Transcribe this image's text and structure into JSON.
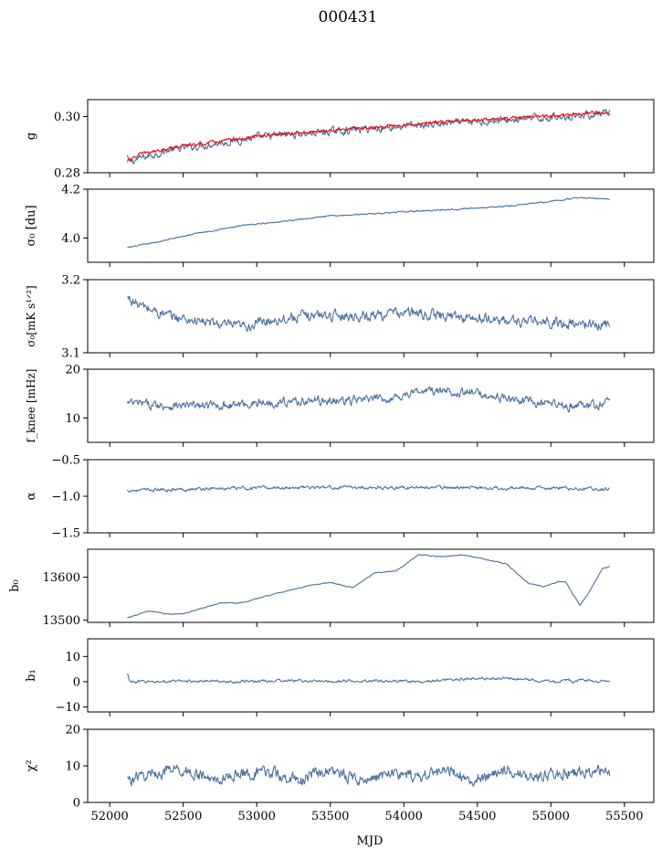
{
  "colors": {
    "series": "#4c72a0",
    "fit": "#ff0000",
    "axis": "#000000"
  },
  "chart_data": {
    "type": "line",
    "title": "000431",
    "xlabel": "MJD",
    "xlim": [
      51850,
      55700
    ],
    "xticks": [
      52000,
      52500,
      53000,
      53500,
      54000,
      54500,
      55000,
      55500
    ],
    "xtick_labels": [
      "52000",
      "52500",
      "53000",
      "53500",
      "54000",
      "54500",
      "55000",
      "55500"
    ],
    "data_xrange": [
      52120,
      55400
    ],
    "panels": [
      {
        "id": "g",
        "ylabel": "g",
        "ylim": [
          0.28,
          0.306
        ],
        "yticks": [
          0.28,
          0.3
        ],
        "ytick_labels": [
          "0.28",
          "0.30"
        ],
        "series": [
          {
            "name": "g",
            "color": "#4c72a0",
            "x": [
              52120,
              52200,
              52400,
              52600,
              52800,
              53000,
              53200,
              53400,
              53600,
              53800,
              54000,
              54200,
              54400,
              54600,
              54800,
              55000,
              55200,
              55400
            ],
            "y": [
              0.2835,
              0.285,
              0.288,
              0.2895,
              0.291,
              0.2925,
              0.2935,
              0.2942,
              0.295,
              0.2958,
              0.2965,
              0.2972,
              0.2978,
              0.2985,
              0.299,
              0.2998,
              0.3005,
              0.301
            ],
            "noise": 0.0015
          },
          {
            "name": "g-fit",
            "color": "#ff0000",
            "x": [
              52120,
              52140,
              52200,
              52400,
              52600,
              52800,
              53000,
              53200,
              53400,
              53600,
              53800,
              54000,
              54200,
              54400,
              54600,
              54800,
              55000,
              55200,
              55300,
              55400
            ],
            "y": [
              0.286,
              0.2845,
              0.2865,
              0.2888,
              0.2902,
              0.2915,
              0.2928,
              0.2938,
              0.2946,
              0.2955,
              0.2962,
              0.297,
              0.2978,
              0.2985,
              0.299,
              0.2996,
              0.3003,
              0.3008,
              0.3013,
              0.3008
            ],
            "noise": 0.0006
          }
        ]
      },
      {
        "id": "sigma0",
        "ylabel": "σ₀ [du]",
        "ylim": [
          3.9,
          4.2
        ],
        "yticks": [
          4.0,
          4.2
        ],
        "ytick_labels": [
          "4.0",
          "4.2"
        ],
        "series": [
          {
            "name": "sigma0",
            "color": "#4c72a0",
            "x": [
              52120,
              52300,
              52600,
              52900,
              53200,
              53500,
              53800,
              54100,
              54400,
              54700,
              55000,
              55200,
              55400
            ],
            "y": [
              3.96,
              3.98,
              4.02,
              4.05,
              4.07,
              4.09,
              4.1,
              4.11,
              4.12,
              4.13,
              4.15,
              4.165,
              4.16
            ],
            "noise": 0.003
          }
        ]
      },
      {
        "id": "sigma0k",
        "ylabel": "σ₀[mK s¹ᐟ²]",
        "ylim": [
          3.1,
          3.2
        ],
        "yticks": [
          3.1,
          3.2
        ],
        "ytick_labels": [
          "3.1",
          "3.2"
        ],
        "series": [
          {
            "name": "sigma0-mK",
            "color": "#4c72a0",
            "x": [
              52120,
              52200,
              52400,
              52700,
              52900,
              53100,
              53400,
              53700,
              54000,
              54300,
              54600,
              54900,
              55100,
              55400
            ],
            "y": [
              3.175,
              3.165,
              3.15,
              3.14,
              3.135,
              3.145,
              3.152,
              3.15,
              3.155,
              3.15,
              3.145,
              3.142,
              3.14,
              3.138
            ],
            "noise": 0.008
          }
        ]
      },
      {
        "id": "fknee",
        "ylabel": "f_knee [mHz]",
        "ylim": [
          5,
          20
        ],
        "yticks": [
          10,
          20
        ],
        "ytick_labels": [
          "10",
          "20"
        ],
        "series": [
          {
            "name": "fknee",
            "color": "#4c72a0",
            "x": [
              52120,
              52400,
              52700,
              53000,
              53300,
              53600,
              53900,
              54100,
              54300,
              54500,
              54700,
              54900,
              55100,
              55300,
              55400
            ],
            "y": [
              13,
              12.5,
              12.5,
              13,
              13.5,
              13.5,
              14,
              15.5,
              15.5,
              15,
              14,
              13,
              12.5,
              12.5,
              13.5
            ],
            "noise": 1.0
          }
        ]
      },
      {
        "id": "alpha",
        "ylabel": "α",
        "ylim": [
          -1.5,
          -0.5
        ],
        "yticks": [
          -1.5,
          -1.0,
          -0.5
        ],
        "ytick_labels": [
          "−1.5",
          "−1.0",
          "−0.5"
        ],
        "series": [
          {
            "name": "alpha",
            "color": "#4c72a0",
            "x": [
              52120,
              52600,
              53200,
              53800,
              54400,
              55000,
              55400
            ],
            "y": [
              -0.92,
              -0.9,
              -0.88,
              -0.88,
              -0.88,
              -0.89,
              -0.9
            ],
            "noise": 0.025
          }
        ]
      },
      {
        "id": "b0",
        "ylabel": "b₀",
        "ylim": [
          13495,
          13665
        ],
        "yticks": [
          13500,
          13600
        ],
        "ytick_labels": [
          "13500",
          "13600"
        ],
        "series": [
          {
            "name": "b0",
            "color": "#4c72a0",
            "x": [
              52120,
              52250,
              52300,
              52400,
              52500,
              52600,
              52750,
              52900,
              53050,
              53200,
              53350,
              53500,
              53650,
              53800,
              53950,
              54100,
              54250,
              54400,
              54550,
              54700,
              54850,
              54950,
              55050,
              55100,
              55150,
              55200,
              55250,
              55300,
              55350,
              55400
            ],
            "y": [
              13505,
              13520,
              13520,
              13514,
              13515,
              13525,
              13540,
              13540,
              13555,
              13568,
              13580,
              13588,
              13575,
              13610,
              13615,
              13652,
              13648,
              13652,
              13642,
              13630,
              13585,
              13578,
              13590,
              13590,
              13560,
              13535,
              13560,
              13590,
              13620,
              13625
            ],
            "noise": 1.2
          }
        ]
      },
      {
        "id": "b1",
        "ylabel": "b₁",
        "ylim": [
          -12,
          17
        ],
        "yticks": [
          -10,
          0,
          10
        ],
        "ytick_labels": [
          "−10",
          "0",
          "10"
        ],
        "series": [
          {
            "name": "b1",
            "color": "#4c72a0",
            "x": [
              52120,
              52140,
              52300,
              52600,
              52900,
              53200,
              53500,
              53800,
              54100,
              54400,
              54700,
              54900,
              55050,
              55100,
              55150,
              55200,
              55300,
              55400
            ],
            "y": [
              3,
              0,
              0,
              0.3,
              0,
              0.5,
              0,
              0.5,
              0,
              1,
              1.5,
              0.5,
              0,
              1,
              0,
              1,
              0,
              0
            ],
            "noise": 0.6
          }
        ]
      },
      {
        "id": "chi2",
        "ylabel": "χ²",
        "ylim": [
          0,
          20
        ],
        "yticks": [
          0,
          10,
          20
        ],
        "ytick_labels": [
          "0",
          "10",
          "20"
        ],
        "series": [
          {
            "name": "chi2",
            "color": "#4c72a0",
            "x": [
              52120,
              52300,
              52500,
              52700,
              52900,
              53100,
              53300,
              53500,
              53700,
              53900,
              54100,
              54300,
              54500,
              54700,
              54900,
              55100,
              55300,
              55400
            ],
            "y": [
              6,
              8,
              9,
              6,
              8,
              8,
              6,
              9,
              6,
              8,
              7,
              9,
              6,
              9,
              7,
              8,
              9,
              8
            ],
            "noise": 1.8
          }
        ]
      }
    ]
  }
}
